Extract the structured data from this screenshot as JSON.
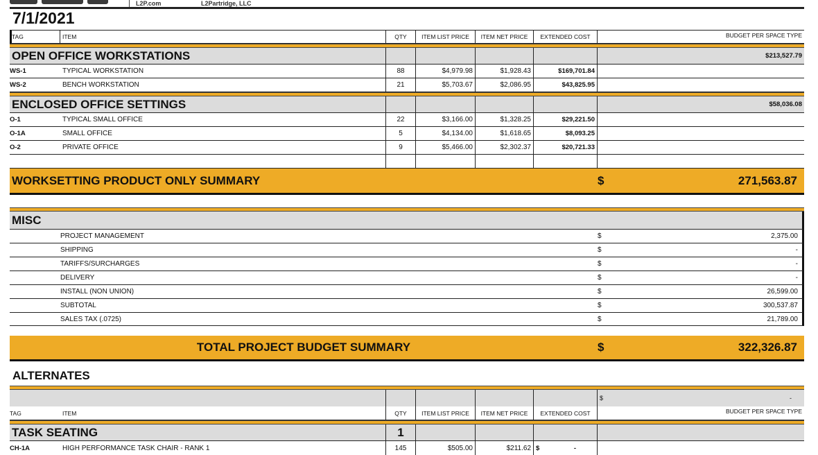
{
  "header": {
    "site": "L2P.com",
    "company": "L2Partridge, LLC",
    "date": "7/1/2021"
  },
  "columns": {
    "tag": "TAG",
    "item": "ITEM",
    "qty": "QTY",
    "list": "ITEM LIST PRICE",
    "net": "ITEM NET PRICE",
    "ext": "EXTENDED COST",
    "budget": "BUDGET PER SPACE TYPE"
  },
  "open_office": {
    "title": "OPEN OFFICE WORKSTATIONS",
    "budget": "$213,527.79",
    "rows": [
      {
        "tag": "WS-1",
        "item": "TYPICAL WORKSTATION",
        "qty": "88",
        "list": "$4,979.98",
        "net": "$1,928.43",
        "ext": "$169,701.84"
      },
      {
        "tag": "WS-2",
        "item": "BENCH WORKSTATION",
        "qty": "21",
        "list": "$5,703.67",
        "net": "$2,086.95",
        "ext": "$43,825.95"
      }
    ]
  },
  "enclosed": {
    "title": "ENCLOSED OFFICE SETTINGS",
    "budget": "$58,036.08",
    "rows": [
      {
        "tag": "O-1",
        "item": "TYPICAL SMALL OFFICE",
        "qty": "22",
        "list": "$3,166.00",
        "net": "$1,328.25",
        "ext": "$29,221.50"
      },
      {
        "tag": "O-1A",
        "item": "SMALL OFFICE",
        "qty": "5",
        "list": "$4,134.00",
        "net": "$1,618.65",
        "ext": "$8,093.25"
      },
      {
        "tag": "O-2",
        "item": "PRIVATE OFFICE",
        "qty": "9",
        "list": "$5,466.00",
        "net": "$2,302.37",
        "ext": "$20,721.33"
      }
    ]
  },
  "worksetting_summary": {
    "label": "WORKSETTING PRODUCT ONLY SUMMARY",
    "currency": "$",
    "value": "271,563.87"
  },
  "misc": {
    "title": "MISC",
    "rows": [
      {
        "label": "PROJECT MANAGEMENT",
        "currency": "$",
        "value": "2,375.00"
      },
      {
        "label": "SHIPPING",
        "currency": "$",
        "value": "-"
      },
      {
        "label": "TARIFFS/SURCHARGES",
        "currency": "$",
        "value": "-"
      },
      {
        "label": "DELIVERY",
        "currency": "$",
        "value": "-"
      },
      {
        "label": "INSTALL (NON UNION)",
        "currency": "$",
        "value": "26,599.00"
      },
      {
        "label": "SUBTOTAL",
        "currency": "$",
        "value": "300,537.87"
      },
      {
        "label": "SALES TAX (.0725)",
        "currency": "$",
        "value": "21,789.00"
      }
    ]
  },
  "total_summary": {
    "label": "TOTAL PROJECT BUDGET SUMMARY",
    "currency": "$",
    "value": "322,326.87"
  },
  "alternates": {
    "title": "ALTERNATES",
    "budget_currency": "$",
    "budget_value": "-"
  },
  "task_seating": {
    "title": "TASK SEATING",
    "qty": "1",
    "rows": [
      {
        "tag": "CH-1A",
        "item": "HIGH PERFORMANCE TASK CHAIR - RANK 1",
        "qty": "145",
        "list": "$505.00",
        "net": "$211.62",
        "ext_currency": "$",
        "ext": "-"
      }
    ]
  },
  "colors": {
    "gold": "#eeab26",
    "gray": "#dcdcdc"
  }
}
